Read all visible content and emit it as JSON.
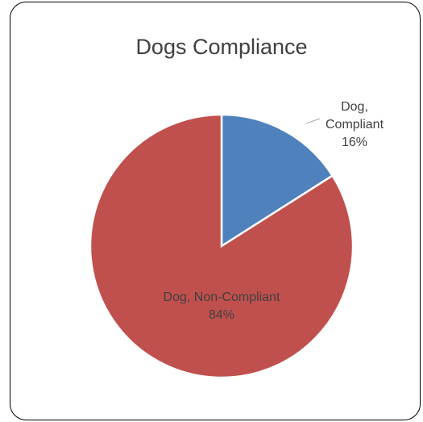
{
  "chart_data": {
    "type": "pie",
    "title": "Dogs Compliance",
    "categories": [
      "Dog, Compliant",
      "Dog, Non-Compliant"
    ],
    "values": [
      16,
      84
    ],
    "value_labels": [
      "16%",
      "84%"
    ],
    "colors": [
      "#4f81bd",
      "#c0504d"
    ]
  }
}
